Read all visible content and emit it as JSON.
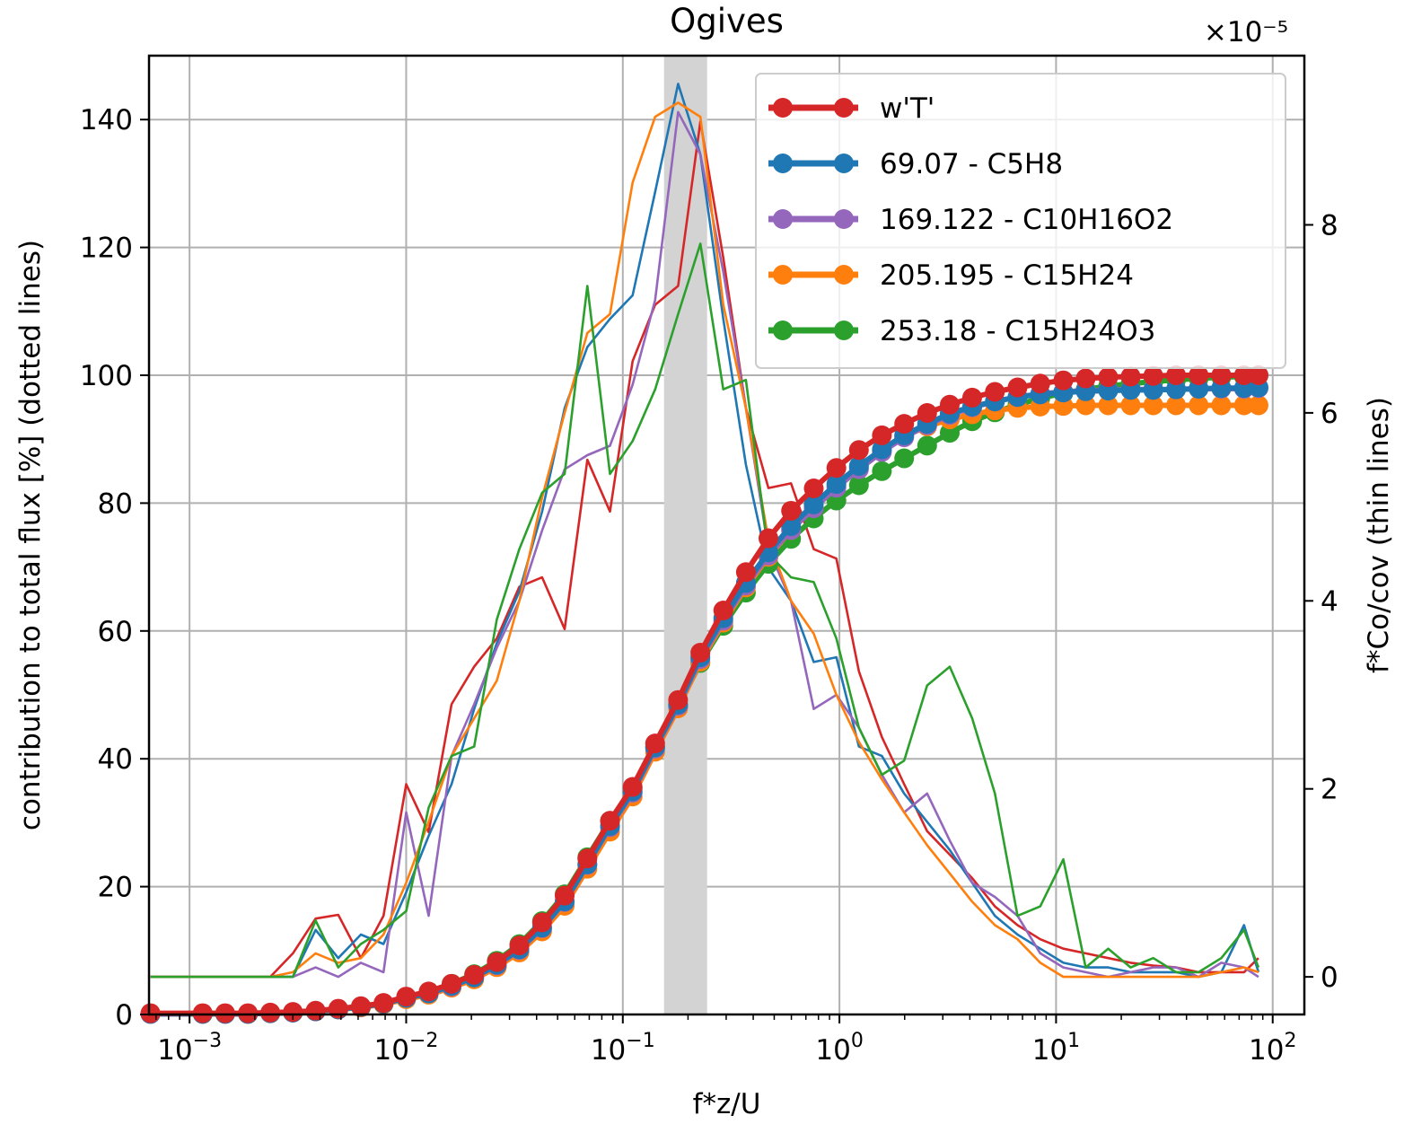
{
  "chart_data": {
    "type": "line",
    "title": "Ogives",
    "xlabel": "f*z/U",
    "ylabel": "contribution to total flux [%] (dotted lines)",
    "y2label": "f*Co/cov (thin lines)",
    "x_scale": "log",
    "xlim": [
      0.00065,
      140
    ],
    "ylim": [
      0,
      150
    ],
    "y2lim": [
      -0.4,
      9.8
    ],
    "y2_multiplier": "×10⁻⁵",
    "grid": true,
    "legend_position": "top-right",
    "highlight_band": {
      "x_from": 0.155,
      "x_to": 0.245,
      "color": "#d3d3d3"
    },
    "x_ticks": [
      {
        "value": 0.001,
        "base": "10",
        "exp": "−3"
      },
      {
        "value": 0.01,
        "base": "10",
        "exp": "−2"
      },
      {
        "value": 0.1,
        "base": "10",
        "exp": "−1"
      },
      {
        "value": 1,
        "base": "10",
        "exp": "0"
      },
      {
        "value": 10,
        "base": "10",
        "exp": "1"
      },
      {
        "value": 100,
        "base": "10",
        "exp": "2"
      }
    ],
    "y_ticks": [
      0,
      20,
      40,
      60,
      80,
      100,
      120,
      140
    ],
    "y2_ticks": [
      0,
      2,
      4,
      6,
      8
    ],
    "x": [
      0.00066,
      0.00115,
      0.00146,
      0.00186,
      0.00236,
      0.003,
      0.00382,
      0.00486,
      0.00618,
      0.00786,
      0.01,
      0.0127,
      0.0162,
      0.0206,
      0.0262,
      0.0333,
      0.0424,
      0.0539,
      0.0686,
      0.0873,
      0.111,
      0.141,
      0.18,
      0.228,
      0.291,
      0.37,
      0.47,
      0.598,
      0.761,
      0.968,
      1.23,
      1.57,
      1.99,
      2.54,
      3.23,
      4.1,
      5.22,
      6.64,
      8.45,
      10.8,
      13.7,
      17.4,
      22.1,
      28.1,
      35.8,
      45.5,
      57.9,
      73.7,
      86.0
    ],
    "series": [
      {
        "name": "w'T'",
        "color": "#d62728",
        "ogive": [
          0.2,
          0.2,
          0.2,
          0.2,
          0.3,
          0.4,
          0.6,
          0.9,
          1.3,
          1.8,
          2.8,
          3.6,
          4.8,
          6.2,
          8.2,
          10.8,
          14.4,
          18.6,
          24.4,
          30.3,
          35.6,
          42.4,
          49.2,
          56.6,
          63.2,
          69.2,
          74.5,
          78.8,
          82.3,
          85.5,
          88.3,
          90.6,
          92.4,
          94.1,
          95.4,
          96.5,
          97.4,
          98.1,
          98.7,
          99.2,
          99.5,
          99.7,
          99.8,
          99.9,
          100.0,
          100.0,
          100.0,
          100.0,
          100.0
        ],
        "cospectrum": [
          0.0,
          0.0,
          0.0,
          0.0,
          0.0,
          0.25,
          0.62,
          0.66,
          0.2,
          0.65,
          2.05,
          1.54,
          2.9,
          3.3,
          3.6,
          4.15,
          4.25,
          3.7,
          5.5,
          4.95,
          6.55,
          7.15,
          7.35,
          9.1,
          7.65,
          6.05,
          5.2,
          5.25,
          4.55,
          4.45,
          3.25,
          2.55,
          2.05,
          1.55,
          1.3,
          1.05,
          0.75,
          0.55,
          0.4,
          0.3,
          0.25,
          0.2,
          0.15,
          0.12,
          0.1,
          0.05,
          0.05,
          0.05,
          0.2
        ]
      },
      {
        "name": "69.07 - C5H8",
        "color": "#1f77b4",
        "ogive": [
          0.1,
          0.1,
          0.1,
          0.1,
          0.2,
          0.3,
          0.5,
          0.8,
          1.2,
          1.7,
          2.6,
          3.3,
          4.5,
          5.8,
          7.8,
          10.2,
          13.6,
          17.7,
          23.5,
          29.5,
          34.9,
          41.8,
          48.5,
          55.9,
          62.0,
          67.5,
          72.3,
          76.4,
          79.8,
          83.0,
          85.8,
          88.4,
          90.6,
          92.4,
          94.0,
          95.1,
          95.9,
          96.6,
          97.0,
          97.3,
          97.5,
          97.6,
          97.7,
          97.7,
          97.8,
          97.9,
          98.0,
          98.0,
          98.1
        ],
        "cospectrum": [
          0.0,
          0.0,
          0.0,
          0.0,
          0.0,
          0.0,
          0.5,
          0.2,
          0.45,
          0.35,
          0.9,
          1.5,
          2.05,
          2.85,
          3.55,
          4.1,
          4.95,
          6.05,
          6.7,
          7.0,
          7.25,
          8.35,
          9.5,
          8.75,
          7.0,
          5.45,
          4.35,
          4.0,
          3.35,
          3.4,
          2.45,
          2.35,
          1.95,
          1.65,
          1.35,
          1.0,
          0.65,
          0.45,
          0.3,
          0.15,
          0.1,
          0.1,
          0.05,
          0.05,
          0.05,
          0.0,
          0.05,
          0.55,
          0.05
        ]
      },
      {
        "name": "169.122 - C10H16O2",
        "color": "#9467bd",
        "ogive": [
          0.1,
          0.1,
          0.1,
          0.1,
          0.2,
          0.3,
          0.5,
          0.8,
          1.2,
          1.7,
          2.6,
          3.3,
          4.4,
          5.8,
          7.7,
          10.1,
          13.5,
          17.6,
          23.4,
          29.3,
          34.7,
          41.6,
          48.3,
          55.6,
          61.6,
          67.1,
          71.8,
          75.8,
          79.2,
          82.4,
          85.3,
          88.0,
          90.3,
          92.2,
          93.8,
          95.0,
          95.9,
          96.6,
          97.1,
          97.4,
          97.6,
          97.7,
          97.8,
          97.8,
          97.8,
          97.9,
          97.9,
          97.9,
          98.0
        ],
        "cospectrum": [
          0.0,
          0.0,
          0.0,
          0.0,
          0.0,
          0.0,
          0.1,
          0.0,
          0.15,
          0.05,
          1.75,
          0.65,
          2.35,
          2.9,
          3.5,
          4.0,
          4.75,
          5.4,
          5.55,
          5.65,
          6.3,
          7.2,
          9.2,
          8.75,
          7.5,
          6.05,
          4.55,
          4.0,
          2.85,
          3.0,
          2.65,
          2.15,
          1.75,
          1.95,
          1.45,
          1.0,
          0.85,
          0.65,
          0.25,
          0.1,
          0.05,
          0.0,
          0.05,
          0.1,
          0.1,
          0.0,
          0.15,
          0.1,
          0.0
        ]
      },
      {
        "name": "205.195 - C15H24",
        "color": "#ff7f0e",
        "ogive": [
          0.1,
          0.1,
          0.1,
          0.1,
          0.2,
          0.3,
          0.5,
          0.8,
          1.1,
          1.6,
          2.4,
          3.1,
          4.2,
          5.5,
          7.4,
          9.7,
          13.0,
          17.0,
          22.8,
          28.6,
          34.1,
          41.1,
          47.9,
          55.2,
          61.3,
          66.8,
          71.6,
          75.8,
          79.4,
          82.7,
          85.6,
          88.3,
          90.5,
          92.0,
          93.1,
          93.9,
          94.5,
          94.9,
          95.1,
          95.2,
          95.3,
          95.3,
          95.3,
          95.3,
          95.3,
          95.3,
          95.3,
          95.3,
          95.3
        ],
        "cospectrum": [
          0.0,
          0.0,
          0.0,
          0.0,
          0.0,
          0.05,
          0.25,
          0.15,
          0.2,
          0.45,
          1.0,
          1.65,
          2.35,
          2.75,
          3.15,
          4.0,
          5.1,
          6.0,
          6.85,
          7.05,
          8.45,
          9.15,
          9.3,
          9.15,
          7.15,
          6.05,
          4.65,
          4.0,
          3.65,
          3.0,
          2.5,
          2.1,
          1.75,
          1.4,
          1.1,
          0.8,
          0.55,
          0.4,
          0.15,
          0.0,
          0.0,
          0.0,
          0.0,
          0.0,
          0.0,
          0.0,
          0.05,
          0.1,
          0.05
        ]
      },
      {
        "name": "253.18 - C15H24O3",
        "color": "#2ca02c",
        "ogive": [
          0.1,
          0.1,
          0.1,
          0.1,
          0.2,
          0.3,
          0.5,
          0.8,
          1.2,
          1.7,
          2.7,
          3.5,
          4.8,
          6.3,
          8.4,
          11.0,
          14.6,
          18.8,
          24.6,
          30.3,
          35.4,
          41.9,
          48.2,
          55.0,
          60.8,
          66.0,
          70.5,
          74.4,
          77.6,
          80.4,
          82.8,
          85.0,
          87.0,
          89.0,
          91.0,
          92.8,
          94.2,
          95.4,
          96.4,
          97.2,
          97.8,
          98.3,
          98.7,
          99.0,
          99.3,
          99.5,
          99.7,
          99.8,
          100.0
        ],
        "cospectrum": [
          0.0,
          0.0,
          0.0,
          0.0,
          0.0,
          0.0,
          0.6,
          0.1,
          0.35,
          0.5,
          0.7,
          1.8,
          2.35,
          2.45,
          3.8,
          4.55,
          5.15,
          5.35,
          7.35,
          5.35,
          5.7,
          6.25,
          7.05,
          7.8,
          6.25,
          6.35,
          4.5,
          4.25,
          4.2,
          3.6,
          2.65,
          2.15,
          2.3,
          3.1,
          3.3,
          2.75,
          1.95,
          0.65,
          0.75,
          1.25,
          0.1,
          0.3,
          0.1,
          0.2,
          0.05,
          0.05,
          0.2,
          0.5,
          0.1
        ]
      }
    ]
  }
}
